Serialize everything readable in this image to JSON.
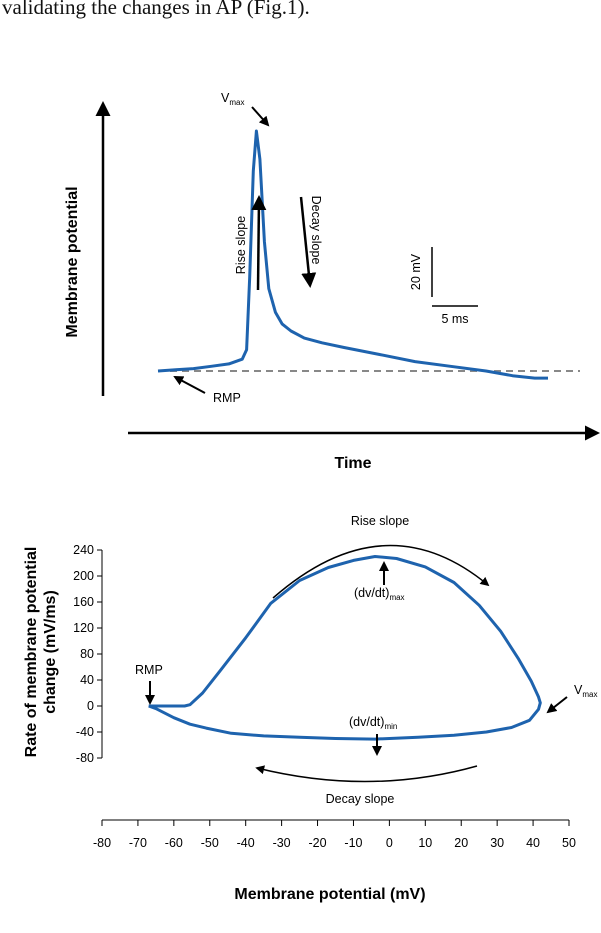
{
  "caption_fragment": "validating the changes in AP (Fig.1).",
  "chart_data": [
    {
      "type": "line",
      "xlabel": "Time",
      "ylabel": "Membrane potential",
      "scale_bars": {
        "vertical": "20 mV",
        "horizontal": "5 ms"
      },
      "annotations": {
        "peak": "V",
        "peak_sub": "max",
        "rise": "Rise slope",
        "decay": "Decay slope",
        "rmp": "RMP"
      },
      "trace_ms": [
        0,
        4,
        8,
        12,
        16,
        19,
        20,
        20.7,
        21.5,
        22.2,
        23,
        24,
        25,
        26.5,
        28,
        30,
        33,
        37,
        42,
        50,
        58,
        66,
        74,
        80,
        85,
        88
      ],
      "trace_mv": [
        0,
        0.5,
        1,
        2,
        3,
        5,
        9,
        40,
        85,
        102,
        90,
        55,
        35,
        25,
        20,
        17,
        14,
        12,
        10,
        7,
        4,
        2,
        0,
        -2,
        -3,
        -3
      ]
    },
    {
      "type": "line",
      "xlabel": "Membrane potential (mV)",
      "ylabel_line1": "Rate of membrane potential",
      "ylabel_line2": "change (mV/ms)",
      "xlim": [
        -80,
        50
      ],
      "ylim": [
        -80,
        240
      ],
      "x_ticks": [
        "-80",
        "-70",
        "-60",
        "-50",
        "-40",
        "-30",
        "-20",
        "-10",
        "0",
        "10",
        "20",
        "30",
        "40",
        "50"
      ],
      "y_ticks": [
        "240",
        "200",
        "160",
        "120",
        "80",
        "40",
        "0",
        "-40",
        "-80"
      ],
      "annotations": {
        "rise": "Rise slope",
        "decay": "Decay slope",
        "rmp": "RMP",
        "max_label": "(dv/dt)",
        "max_sub": "max",
        "min_label": "(dv/dt)",
        "min_sub": "min",
        "vmax": "V",
        "vmax_sub": "max"
      },
      "x": [
        -67,
        -63,
        -60,
        -57,
        -55.5,
        -52,
        -47,
        -40,
        -33,
        -25,
        -17,
        -10,
        -4,
        2,
        10,
        18,
        25,
        31,
        36,
        39.5,
        41.5,
        42,
        41.5,
        39,
        34,
        27,
        18,
        8,
        -4,
        -15,
        -25,
        -35,
        -44,
        -51,
        -55.5,
        -60,
        -65,
        -67
      ],
      "y": [
        0,
        0,
        0,
        0,
        2,
        20,
        55,
        105,
        158,
        193,
        213,
        224,
        230,
        227,
        214,
        190,
        155,
        115,
        72,
        38,
        14,
        5,
        -5,
        -22,
        -33,
        -40,
        -45,
        -48,
        -51,
        -50,
        -48,
        -46,
        -42,
        -34,
        -28,
        -18,
        -4,
        0
      ]
    }
  ]
}
